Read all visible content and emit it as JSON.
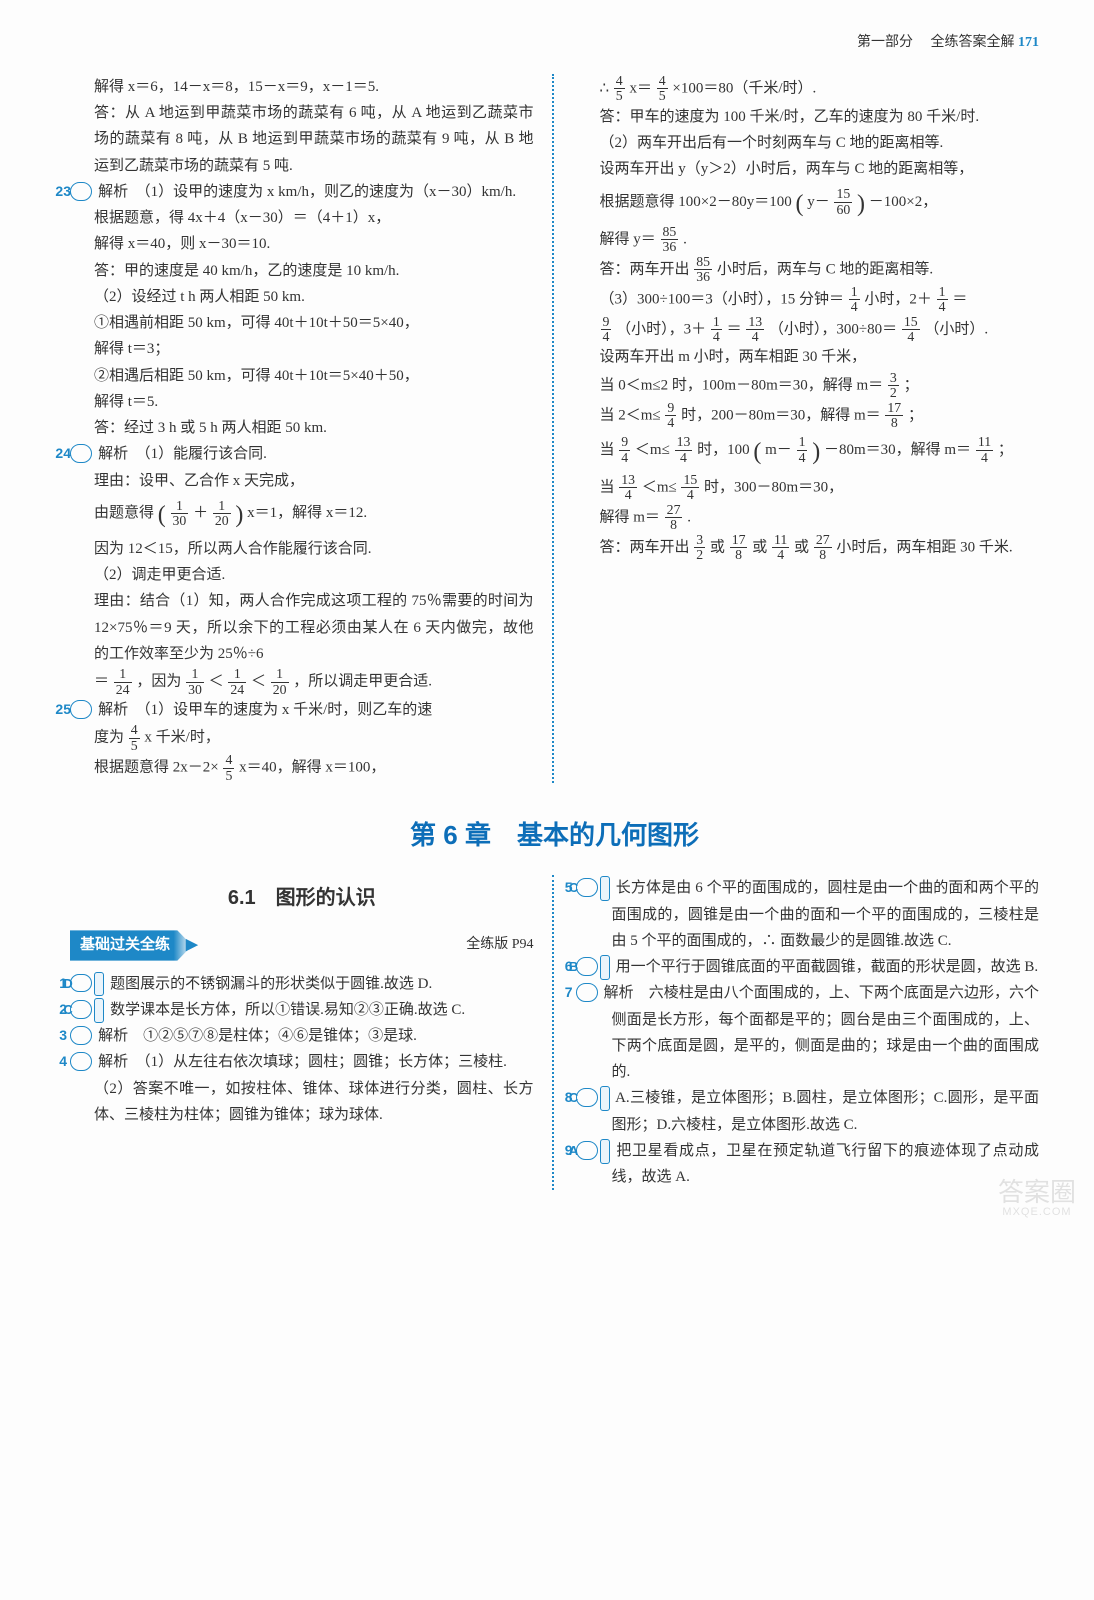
{
  "header": {
    "section": "第一部分",
    "title": "全练答案全解",
    "page": "171"
  },
  "left": {
    "l1": "解得 x＝6，14－x＝8，15－x＝9，x－1＝5.",
    "l2": "答：从 A 地运到甲蔬菜市场的蔬菜有 6 吨，从 A 地运到乙蔬菜市场的蔬菜有 8 吨，从 B 地运到甲蔬菜市场的蔬菜有 9 吨，从 B 地运到乙蔬菜市场的蔬菜有 5 吨.",
    "q23n": "23",
    "q23a": "解析　（1）设甲的速度为 x km/h，则乙的速度为（x－30）km/h.",
    "q23b": "根据题意，得 4x＋4（x－30）＝（4＋1）x，",
    "q23c": "解得 x＝40，则 x－30＝10.",
    "q23d": "答：甲的速度是 40 km/h，乙的速度是 10 km/h.",
    "q23e": "（2）设经过 t h 两人相距 50 km.",
    "q23f": "①相遇前相距 50 km，可得 40t＋10t＋50＝5×40，",
    "q23g": "解得 t＝3；",
    "q23h": "②相遇后相距 50 km，可得 40t＋10t＝5×40＋50，",
    "q23i": "解得 t＝5.",
    "q23j": "答：经过 3 h 或 5 h 两人相距 50 km.",
    "q24n": "24",
    "q24a": "解析　（1）能履行该合同.",
    "q24b": "理由：设甲、乙合作 x 天完成，",
    "q24c1": "由题意得 ",
    "q24c_f1n": "1",
    "q24c_f1d": "30",
    "q24c_plus": "＋",
    "q24c_f2n": "1",
    "q24c_f2d": "20",
    "q24c2": " x＝1，解得 x＝12.",
    "q24d": "因为 12＜15，所以两人合作能履行该合同.",
    "q24e": "（2）调走甲更合适.",
    "q24f": "理由：结合（1）知，两人合作完成这项工程的 75％需要的时间为12×75％＝9 天，所以余下的工程必须由某人在 6 天内做完，故他的工作效率至少为 25％÷6",
    "q24g1": "＝",
    "q24g_f1n": "1",
    "q24g_f1d": "24",
    "q24g2": "，因为 ",
    "q24g_f2n": "1",
    "q24g_f2d": "30",
    "q24g_lt1": "＜",
    "q24g_f3n": "1",
    "q24g_f3d": "24",
    "q24g_lt2": "＜",
    "q24g_f4n": "1",
    "q24g_f4d": "20",
    "q24g3": "，所以调走甲更合适.",
    "q25n": "25",
    "q25a1": "解析　（1）设甲车的速度为 x 千米/时，则乙车的速",
    "q25a2a": "度为 ",
    "q25a2_fn": "4",
    "q25a2_fd": "5",
    "q25a2b": "x 千米/时，",
    "q25b1": "根据题意得 2x－2×",
    "q25b_fn": "4",
    "q25b_fd": "5",
    "q25b2": "x＝40，解得 x＝100，"
  },
  "right": {
    "r1a": "∴ ",
    "r1_f1n": "4",
    "r1_f1d": "5",
    "r1b": "x＝",
    "r1_f2n": "4",
    "r1_f2d": "5",
    "r1c": "×100＝80（千米/时）.",
    "r2": "答：甲车的速度为 100 千米/时，乙车的速度为 80 千米/时.",
    "r3": "（2）两车开出后有一个时刻两车与 C 地的距离相等.",
    "r4": "设两车开出 y（y＞2）小时后，两车与 C 地的距离相等，",
    "r5a": "根据题意得 100×2－80y＝100",
    "r5b": "y－",
    "r5_fn": "15",
    "r5_fd": "60",
    "r5c": "－100×2，",
    "r6a": "解得 y＝",
    "r6_fn": "85",
    "r6_fd": "36",
    "r6b": ".",
    "r7a": "答：两车开出 ",
    "r7_fn": "85",
    "r7_fd": "36",
    "r7b": " 小时后，两车与 C 地的距离相等.",
    "r8a": "（3）300÷100＝3（小时），15 分钟＝",
    "r8_f1n": "1",
    "r8_f1d": "4",
    "r8b": "小时，2＋",
    "r8_f2n": "1",
    "r8_f2d": "4",
    "r8c": "＝",
    "r9_f1n": "9",
    "r9_f1d": "4",
    "r9a": "（小时），3＋",
    "r9_f2n": "1",
    "r9_f2d": "4",
    "r9b": "＝",
    "r9_f3n": "13",
    "r9_f3d": "4",
    "r9c": "（小时），300÷80＝",
    "r9_f4n": "15",
    "r9_f4d": "4",
    "r9d": "（小时）.",
    "r10": "设两车开出 m 小时，两车相距 30 千米，",
    "r11a": "当 0＜m≤2 时，100m－80m＝30，解得 m＝",
    "r11_fn": "3",
    "r11_fd": "2",
    "r11b": "；",
    "r12a": "当 2＜m≤",
    "r12_f1n": "9",
    "r12_f1d": "4",
    "r12b": "时，200－80m＝30，解得 m＝",
    "r12_f2n": "17",
    "r12_f2d": "8",
    "r12c": "；",
    "r13a": "当 ",
    "r13_f1n": "9",
    "r13_f1d": "4",
    "r13b": "＜m≤",
    "r13_f2n": "13",
    "r13_f2d": "4",
    "r13c": "时，100",
    "r13d": "m－",
    "r13_f3n": "1",
    "r13_f3d": "4",
    "r13e": "－80m＝30，解得 m＝",
    "r13_f4n": "11",
    "r13_f4d": "4",
    "r13f": "；",
    "r14a": "当 ",
    "r14_f1n": "13",
    "r14_f1d": "4",
    "r14b": "＜m≤",
    "r14_f2n": "15",
    "r14_f2d": "4",
    "r14c": "时，300－80m＝30，",
    "r15a": "解得 m＝",
    "r15_fn": "27",
    "r15_fd": "8",
    "r15b": ".",
    "r16a": "答：两车开出 ",
    "r16_f1n": "3",
    "r16_f1d": "2",
    "r16b": "或",
    "r16_f2n": "17",
    "r16_f2d": "8",
    "r16c": "或",
    "r16_f3n": "11",
    "r16_f3d": "4",
    "r16d": "或",
    "r16_f4n": "27",
    "r16_f4d": "8",
    "r16e": "小时后，两车相距 30 千米."
  },
  "chapter": "第 6 章　基本的几何图形",
  "section61": "6.1　图形的认识",
  "practice": {
    "label": "基础过关全练",
    "ref": "全练版 P94"
  },
  "bleft": {
    "q1n": "1",
    "q1l": "D",
    "q1": "题图展示的不锈钢漏斗的形状类似于圆锥.故选 D.",
    "q2n": "2",
    "q2l": "C",
    "q2": "数学课本是长方体，所以①错误.易知②③正确.故选 C.",
    "q3n": "3",
    "q3": "解析　①②⑤⑦⑧是柱体；④⑥是锥体；③是球.",
    "q4n": "4",
    "q4a": "解析　（1）从左往右依次填球；圆柱；圆锥；长方体；三棱柱.",
    "q4b": "（2）答案不唯一，如按柱体、锥体、球体进行分类，圆柱、长方体、三棱柱为柱体；圆锥为锥体；球为球体."
  },
  "bright": {
    "q5n": "5",
    "q5l": "C",
    "q5": "长方体是由 6 个平的面围成的，圆柱是由一个曲的面和两个平的面围成的，圆锥是由一个曲的面和一个平的面围成的，三棱柱是由 5 个平的面围成的，∴ 面数最少的是圆锥.故选 C.",
    "q6n": "6",
    "q6l": "B",
    "q6": "用一个平行于圆锥底面的平面截圆锥，截面的形状是圆，故选 B.",
    "q7n": "7",
    "q7": "解析　六棱柱是由八个面围成的，上、下两个底面是六边形，六个侧面是长方形，每个面都是平的；圆台是由三个面围成的，上、下两个底面是圆，是平的，侧面是曲的；球是由一个曲的面围成的.",
    "q8n": "8",
    "q8l": "C",
    "q8": "A.三棱锥，是立体图形；B.圆柱，是立体图形；C.圆形，是平面图形；D.六棱柱，是立体图形.故选 C.",
    "q9n": "9",
    "q9l": "A",
    "q9": "把卫星看成点，卫星在预定轨道飞行留下的痕迹体现了点动成线，故选 A."
  },
  "watermark": {
    "main": "答案圈",
    "sub": "MXQE.COM"
  }
}
